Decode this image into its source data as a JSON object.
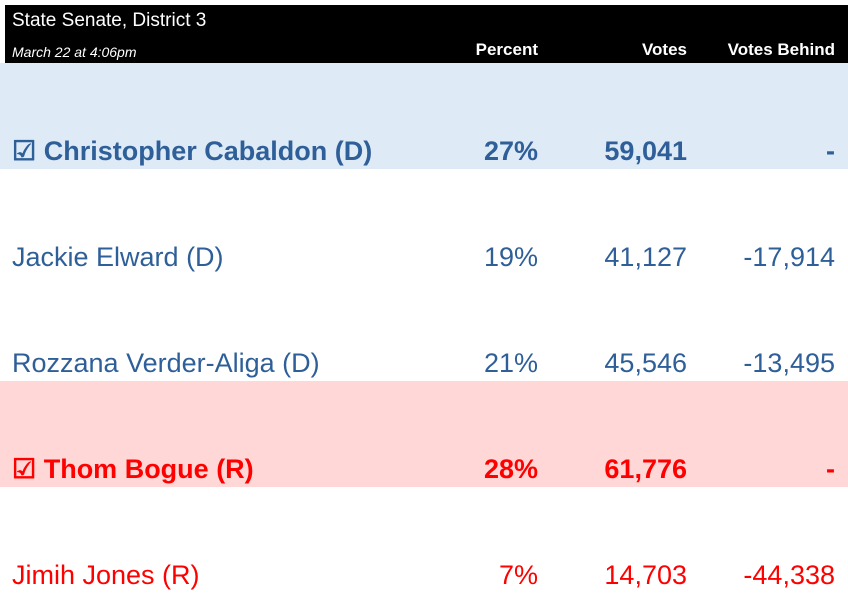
{
  "header": {
    "title": "State Senate, District 3",
    "timestamp": "March 22 at 4:06pm",
    "columns": [
      "Percent",
      "Votes",
      "Votes Behind"
    ]
  },
  "table": {
    "rows": [
      [
        "☑ Christopher Cabaldon (D)",
        "27%",
        "59,041",
        "-"
      ],
      [
        "Jackie Elward (D)",
        "19%",
        "41,127",
        "-17,914"
      ],
      [
        "Rozzana Verder-Aliga (D)",
        "21%",
        "45,546",
        "-13,495"
      ],
      [
        "☑ Thom Bogue (R)",
        "28%",
        "61,776",
        "-"
      ],
      [
        "Jimih Jones (R)",
        "7%",
        "14,703",
        "-44,338"
      ]
    ]
  }
}
